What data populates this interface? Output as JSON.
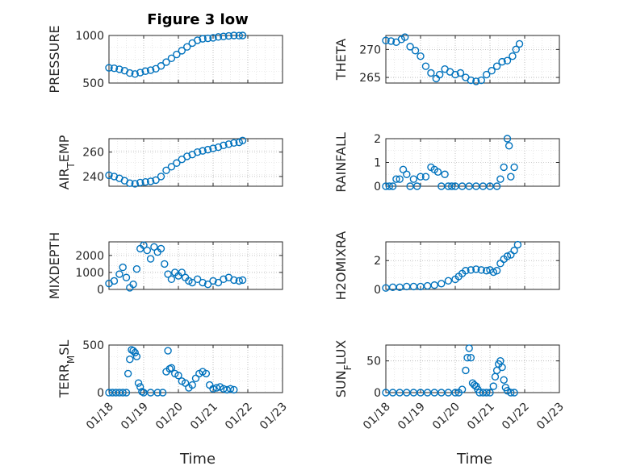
{
  "figure_title": "Figure 3 low",
  "colors": {
    "marker": "#0072bd",
    "axis": "#262626",
    "grid": "#b0b0b0"
  },
  "chart_data": [
    {
      "type": "scatter",
      "ylabel": "PRESSURE",
      "yticks": [
        "500",
        "1000"
      ],
      "ylim": [
        500,
        1000
      ],
      "xlim": [
        "01/18",
        "01/23"
      ],
      "grid": true,
      "points": [
        [
          0.0,
          660
        ],
        [
          0.15,
          655
        ],
        [
          0.3,
          645
        ],
        [
          0.45,
          630
        ],
        [
          0.6,
          605
        ],
        [
          0.75,
          595
        ],
        [
          0.9,
          610
        ],
        [
          1.05,
          625
        ],
        [
          1.2,
          635
        ],
        [
          1.35,
          650
        ],
        [
          1.5,
          680
        ],
        [
          1.65,
          720
        ],
        [
          1.8,
          760
        ],
        [
          1.95,
          800
        ],
        [
          2.1,
          840
        ],
        [
          2.25,
          880
        ],
        [
          2.4,
          920
        ],
        [
          2.55,
          950
        ],
        [
          2.7,
          965
        ],
        [
          2.85,
          970
        ],
        [
          3.0,
          975
        ],
        [
          3.15,
          985
        ],
        [
          3.3,
          990
        ],
        [
          3.45,
          995
        ],
        [
          3.6,
          1000
        ],
        [
          3.75,
          998
        ],
        [
          3.85,
          1000
        ]
      ]
    },
    {
      "type": "scatter",
      "ylabel": "THETA",
      "yticks": [
        "265",
        "270"
      ],
      "ylim": [
        264,
        272.5
      ],
      "xlim": [
        "01/18",
        "01/23"
      ],
      "grid": true,
      "points": [
        [
          0.0,
          271.6
        ],
        [
          0.15,
          271.5
        ],
        [
          0.3,
          271.3
        ],
        [
          0.45,
          271.8
        ],
        [
          0.55,
          272.2
        ],
        [
          0.7,
          270.5
        ],
        [
          0.85,
          269.8
        ],
        [
          1.0,
          268.8
        ],
        [
          1.15,
          267.0
        ],
        [
          1.3,
          265.8
        ],
        [
          1.45,
          264.8
        ],
        [
          1.55,
          265.5
        ],
        [
          1.7,
          266.5
        ],
        [
          1.85,
          266.0
        ],
        [
          2.0,
          265.5
        ],
        [
          2.15,
          265.8
        ],
        [
          2.3,
          265.0
        ],
        [
          2.45,
          264.5
        ],
        [
          2.6,
          264.3
        ],
        [
          2.75,
          264.5
        ],
        [
          2.9,
          265.5
        ],
        [
          3.05,
          266.2
        ],
        [
          3.2,
          267.0
        ],
        [
          3.35,
          267.8
        ],
        [
          3.5,
          268.0
        ],
        [
          3.65,
          268.8
        ],
        [
          3.75,
          270.0
        ],
        [
          3.85,
          271.0
        ]
      ]
    },
    {
      "type": "scatter",
      "ylabel": "AIR_TEMP",
      "yticks": [
        "240",
        "260"
      ],
      "ylim": [
        232,
        271
      ],
      "xlim": [
        "01/18",
        "01/23"
      ],
      "grid": true,
      "points": [
        [
          0.0,
          241
        ],
        [
          0.15,
          240
        ],
        [
          0.3,
          238.5
        ],
        [
          0.45,
          236.5
        ],
        [
          0.6,
          234.5
        ],
        [
          0.75,
          234
        ],
        [
          0.9,
          235
        ],
        [
          1.05,
          235.5
        ],
        [
          1.2,
          236
        ],
        [
          1.35,
          237
        ],
        [
          1.5,
          240
        ],
        [
          1.65,
          245
        ],
        [
          1.8,
          248
        ],
        [
          1.95,
          251
        ],
        [
          2.1,
          254
        ],
        [
          2.25,
          256.5
        ],
        [
          2.4,
          258
        ],
        [
          2.55,
          260
        ],
        [
          2.7,
          261
        ],
        [
          2.85,
          262
        ],
        [
          3.0,
          263
        ],
        [
          3.15,
          264
        ],
        [
          3.3,
          265.5
        ],
        [
          3.45,
          266.5
        ],
        [
          3.6,
          267.5
        ],
        [
          3.75,
          268
        ],
        [
          3.85,
          269.5
        ]
      ]
    },
    {
      "type": "scatter",
      "ylabel": "RAINFALL",
      "yticks": [
        "0",
        "1",
        "2"
      ],
      "ylim": [
        0,
        2
      ],
      "xlim": [
        "01/18",
        "01/23"
      ],
      "grid": true,
      "points": [
        [
          0.0,
          0
        ],
        [
          0.1,
          0
        ],
        [
          0.2,
          0
        ],
        [
          0.3,
          0.3
        ],
        [
          0.4,
          0.3
        ],
        [
          0.5,
          0.7
        ],
        [
          0.6,
          0.5
        ],
        [
          0.7,
          0
        ],
        [
          0.8,
          0.3
        ],
        [
          0.9,
          0
        ],
        [
          1.0,
          0.4
        ],
        [
          1.15,
          0.4
        ],
        [
          1.3,
          0.8
        ],
        [
          1.4,
          0.7
        ],
        [
          1.5,
          0.6
        ],
        [
          1.6,
          0
        ],
        [
          1.7,
          0.5
        ],
        [
          1.8,
          0
        ],
        [
          1.9,
          0
        ],
        [
          2.0,
          0
        ],
        [
          2.2,
          0
        ],
        [
          2.4,
          0
        ],
        [
          2.6,
          0
        ],
        [
          2.8,
          0
        ],
        [
          3.0,
          0
        ],
        [
          3.2,
          0
        ],
        [
          3.3,
          0.3
        ],
        [
          3.4,
          0.8
        ],
        [
          3.5,
          2.0
        ],
        [
          3.55,
          1.7
        ],
        [
          3.6,
          0.4
        ],
        [
          3.7,
          0.8
        ]
      ]
    },
    {
      "type": "scatter",
      "ylabel": "MIXDEPTH",
      "yticks": [
        "0",
        "1000",
        "2000"
      ],
      "ylim": [
        0,
        2800
      ],
      "xlim": [
        "01/18",
        "01/23"
      ],
      "grid": true,
      "points": [
        [
          0.0,
          350
        ],
        [
          0.15,
          500
        ],
        [
          0.3,
          900
        ],
        [
          0.4,
          1300
        ],
        [
          0.5,
          700
        ],
        [
          0.6,
          100
        ],
        [
          0.7,
          300
        ],
        [
          0.8,
          1200
        ],
        [
          0.9,
          2400
        ],
        [
          1.0,
          2600
        ],
        [
          1.1,
          2300
        ],
        [
          1.2,
          1800
        ],
        [
          1.3,
          2500
        ],
        [
          1.4,
          2200
        ],
        [
          1.5,
          2400
        ],
        [
          1.6,
          1500
        ],
        [
          1.7,
          900
        ],
        [
          1.8,
          600
        ],
        [
          1.9,
          1000
        ],
        [
          2.0,
          800
        ],
        [
          2.1,
          1000
        ],
        [
          2.2,
          700
        ],
        [
          2.3,
          500
        ],
        [
          2.4,
          400
        ],
        [
          2.55,
          600
        ],
        [
          2.7,
          400
        ],
        [
          2.85,
          300
        ],
        [
          3.0,
          500
        ],
        [
          3.15,
          400
        ],
        [
          3.3,
          600
        ],
        [
          3.45,
          700
        ],
        [
          3.6,
          550
        ],
        [
          3.75,
          500
        ],
        [
          3.85,
          550
        ]
      ]
    },
    {
      "type": "scatter",
      "ylabel": "H2OMIXRA",
      "yticks": [
        "0",
        "2"
      ],
      "ylim": [
        0,
        3.3
      ],
      "xlim": [
        "01/18",
        "01/23"
      ],
      "grid": true,
      "points": [
        [
          0.0,
          0.1
        ],
        [
          0.2,
          0.15
        ],
        [
          0.4,
          0.15
        ],
        [
          0.6,
          0.2
        ],
        [
          0.8,
          0.2
        ],
        [
          1.0,
          0.2
        ],
        [
          1.2,
          0.25
        ],
        [
          1.4,
          0.3
        ],
        [
          1.6,
          0.4
        ],
        [
          1.8,
          0.6
        ],
        [
          2.0,
          0.7
        ],
        [
          2.1,
          0.9
        ],
        [
          2.2,
          1.1
        ],
        [
          2.3,
          1.3
        ],
        [
          2.45,
          1.35
        ],
        [
          2.6,
          1.4
        ],
        [
          2.75,
          1.35
        ],
        [
          2.9,
          1.3
        ],
        [
          3.0,
          1.35
        ],
        [
          3.1,
          1.2
        ],
        [
          3.2,
          1.3
        ],
        [
          3.3,
          1.8
        ],
        [
          3.4,
          2.1
        ],
        [
          3.5,
          2.3
        ],
        [
          3.6,
          2.4
        ],
        [
          3.7,
          2.7
        ],
        [
          3.8,
          3.1
        ]
      ]
    },
    {
      "type": "scatter",
      "ylabel": "TERR_MSL",
      "yticks": [
        "0",
        "500"
      ],
      "ylim": [
        0,
        500
      ],
      "xlim": [
        "01/18",
        "01/23"
      ],
      "grid": true,
      "points": [
        [
          0.0,
          0
        ],
        [
          0.1,
          0
        ],
        [
          0.2,
          0
        ],
        [
          0.3,
          0
        ],
        [
          0.4,
          0
        ],
        [
          0.5,
          0
        ],
        [
          0.55,
          200
        ],
        [
          0.6,
          350
        ],
        [
          0.65,
          450
        ],
        [
          0.7,
          440
        ],
        [
          0.75,
          420
        ],
        [
          0.8,
          380
        ],
        [
          0.85,
          100
        ],
        [
          0.9,
          60
        ],
        [
          0.95,
          10
        ],
        [
          1.0,
          0
        ],
        [
          1.2,
          0
        ],
        [
          1.4,
          0
        ],
        [
          1.55,
          0
        ],
        [
          1.65,
          220
        ],
        [
          1.7,
          440
        ],
        [
          1.75,
          250
        ],
        [
          1.8,
          260
        ],
        [
          1.9,
          200
        ],
        [
          2.0,
          180
        ],
        [
          2.1,
          120
        ],
        [
          2.2,
          100
        ],
        [
          2.3,
          50
        ],
        [
          2.4,
          80
        ],
        [
          2.5,
          150
        ],
        [
          2.6,
          200
        ],
        [
          2.7,
          220
        ],
        [
          2.8,
          200
        ],
        [
          2.9,
          80
        ],
        [
          3.0,
          40
        ],
        [
          3.1,
          50
        ],
        [
          3.2,
          60
        ],
        [
          3.3,
          40
        ],
        [
          3.4,
          30
        ],
        [
          3.5,
          40
        ],
        [
          3.6,
          30
        ]
      ]
    },
    {
      "type": "scatter",
      "ylabel": "SUN_FLUX",
      "yticks": [
        "0",
        "50"
      ],
      "ylim": [
        0,
        75
      ],
      "xlim": [
        "01/18",
        "01/23"
      ],
      "grid": true,
      "points": [
        [
          0.0,
          0
        ],
        [
          0.2,
          0
        ],
        [
          0.4,
          0
        ],
        [
          0.6,
          0
        ],
        [
          0.8,
          0
        ],
        [
          1.0,
          0
        ],
        [
          1.2,
          0
        ],
        [
          1.4,
          0
        ],
        [
          1.6,
          0
        ],
        [
          1.8,
          0
        ],
        [
          2.0,
          0
        ],
        [
          2.1,
          0
        ],
        [
          2.2,
          5
        ],
        [
          2.3,
          35
        ],
        [
          2.35,
          55
        ],
        [
          2.4,
          70
        ],
        [
          2.45,
          55
        ],
        [
          2.5,
          15
        ],
        [
          2.55,
          12
        ],
        [
          2.6,
          10
        ],
        [
          2.65,
          5
        ],
        [
          2.7,
          0
        ],
        [
          2.8,
          0
        ],
        [
          2.9,
          0
        ],
        [
          3.0,
          0
        ],
        [
          3.1,
          10
        ],
        [
          3.15,
          25
        ],
        [
          3.2,
          35
        ],
        [
          3.25,
          45
        ],
        [
          3.3,
          50
        ],
        [
          3.35,
          40
        ],
        [
          3.4,
          20
        ],
        [
          3.45,
          8
        ],
        [
          3.5,
          3
        ],
        [
          3.6,
          0
        ],
        [
          3.7,
          0
        ]
      ]
    }
  ],
  "xticks": [
    "01/18",
    "01/19",
    "01/20",
    "01/21",
    "01/22",
    "01/23"
  ],
  "xlabel": "Time"
}
